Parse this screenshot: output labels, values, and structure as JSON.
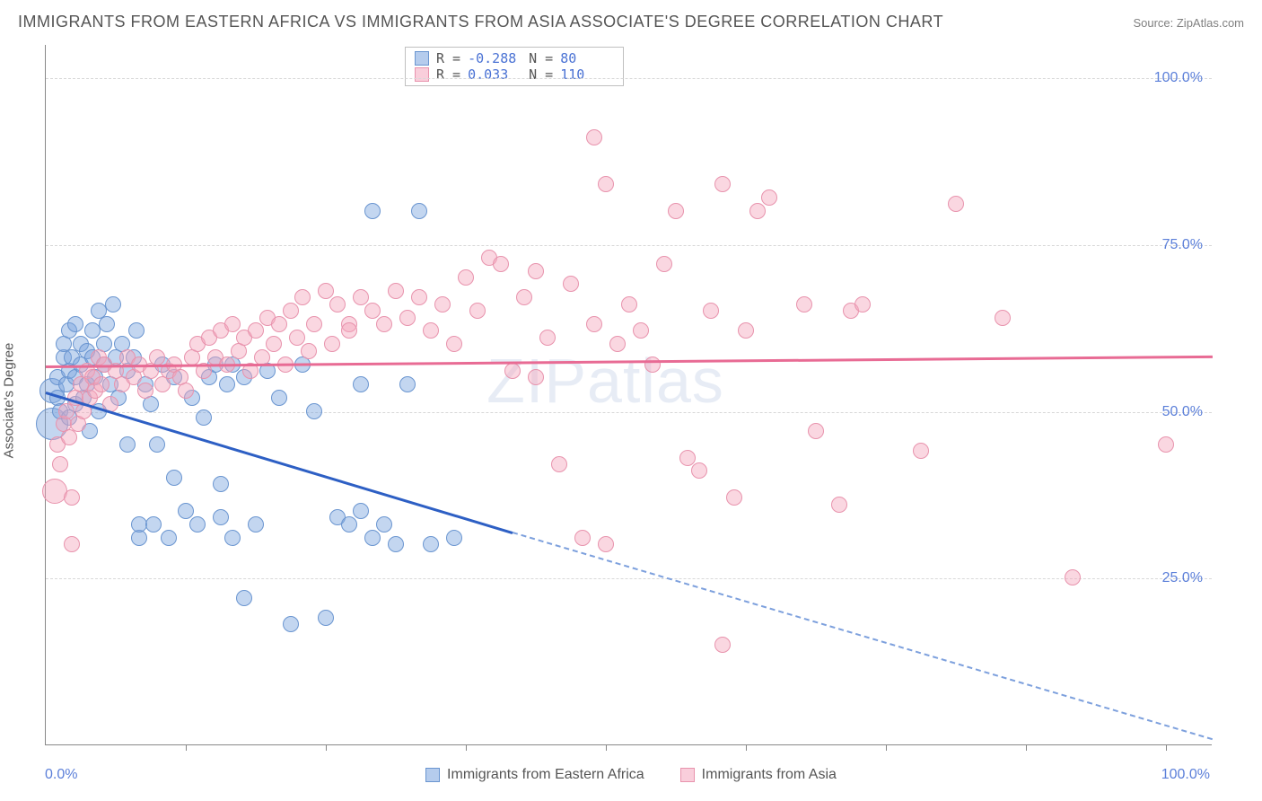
{
  "title": "IMMIGRANTS FROM EASTERN AFRICA VS IMMIGRANTS FROM ASIA ASSOCIATE'S DEGREE CORRELATION CHART",
  "source": "Source: ZipAtlas.com",
  "watermark": "ZIPatlas",
  "ylabel": "Associate's Degree",
  "chart": {
    "type": "scatter",
    "xlim": [
      0,
      100
    ],
    "ylim": [
      0,
      105
    ],
    "ytick_positions": [
      25,
      50,
      75,
      100
    ],
    "ytick_labels": [
      "25.0%",
      "50.0%",
      "75.0%",
      "100.0%"
    ],
    "xtick_positions": [
      12,
      24,
      36,
      48,
      60,
      72,
      84,
      96
    ],
    "xaxis_labels": {
      "left": "0.0%",
      "right": "100.0%"
    },
    "background_color": "#ffffff",
    "grid_color": "#d8d8d8",
    "axis_color": "#888888",
    "marker_radius": 9,
    "marker_radius_large": 16,
    "series": [
      {
        "name": "Immigrants from Eastern Africa",
        "color_fill": "rgba(121,163,222,0.45)",
        "color_stroke": "#6a95d0",
        "trend": {
          "color": "#2d5fc4",
          "x1": 0,
          "y1": 53,
          "x2": 40,
          "y2": 32,
          "dash_x2": 100,
          "dash_y2": 1
        },
        "R": "-0.288",
        "N": "80",
        "points": [
          [
            0.5,
            48,
            18
          ],
          [
            0.5,
            53,
            14
          ],
          [
            1,
            55
          ],
          [
            1,
            52
          ],
          [
            1.2,
            50
          ],
          [
            1.5,
            58
          ],
          [
            1.5,
            60
          ],
          [
            1.8,
            54
          ],
          [
            2,
            56
          ],
          [
            2,
            49
          ],
          [
            2,
            62
          ],
          [
            2.2,
            58
          ],
          [
            2.5,
            63
          ],
          [
            2.5,
            55
          ],
          [
            2.5,
            51
          ],
          [
            3,
            57
          ],
          [
            3,
            60
          ],
          [
            3.2,
            52
          ],
          [
            3.5,
            59
          ],
          [
            3.5,
            54
          ],
          [
            3.8,
            47
          ],
          [
            4,
            58
          ],
          [
            4,
            62
          ],
          [
            4.2,
            55
          ],
          [
            4.5,
            65
          ],
          [
            4.5,
            50
          ],
          [
            5,
            60
          ],
          [
            5,
            57
          ],
          [
            5.2,
            63
          ],
          [
            5.5,
            54
          ],
          [
            5.8,
            66
          ],
          [
            6,
            58
          ],
          [
            6.2,
            52
          ],
          [
            6.5,
            60
          ],
          [
            7,
            56
          ],
          [
            7,
            45
          ],
          [
            7.5,
            58
          ],
          [
            7.8,
            62
          ],
          [
            8,
            31
          ],
          [
            8,
            33
          ],
          [
            8.5,
            54
          ],
          [
            9,
            51
          ],
          [
            9.2,
            33
          ],
          [
            9.5,
            45
          ],
          [
            10,
            57
          ],
          [
            10.5,
            31
          ],
          [
            11,
            40
          ],
          [
            11,
            55
          ],
          [
            12,
            35
          ],
          [
            12.5,
            52
          ],
          [
            13,
            33
          ],
          [
            13.5,
            49
          ],
          [
            14,
            55
          ],
          [
            14.5,
            57
          ],
          [
            15,
            39
          ],
          [
            15,
            34
          ],
          [
            15.5,
            54
          ],
          [
            16,
            57
          ],
          [
            16,
            31
          ],
          [
            17,
            55
          ],
          [
            17,
            22
          ],
          [
            18,
            33
          ],
          [
            19,
            56
          ],
          [
            20,
            52
          ],
          [
            21,
            18
          ],
          [
            22,
            57
          ],
          [
            23,
            50
          ],
          [
            24,
            19
          ],
          [
            25,
            34
          ],
          [
            26,
            33
          ],
          [
            27,
            54
          ],
          [
            27,
            35
          ],
          [
            28,
            31
          ],
          [
            28,
            80
          ],
          [
            29,
            33
          ],
          [
            30,
            30
          ],
          [
            31,
            54
          ],
          [
            32,
            80
          ],
          [
            33,
            30
          ],
          [
            35,
            31
          ]
        ]
      },
      {
        "name": "Immigrants from Asia",
        "color_fill": "rgba(244,166,189,0.45)",
        "color_stroke": "#e893ad",
        "trend": {
          "color": "#e86b94",
          "x1": 0,
          "y1": 57,
          "x2": 100,
          "y2": 58.5
        },
        "R": "0.033",
        "N": "110",
        "points": [
          [
            0.8,
            38,
            14
          ],
          [
            1,
            45
          ],
          [
            1.2,
            42
          ],
          [
            1.5,
            48
          ],
          [
            1.8,
            50
          ],
          [
            2,
            46
          ],
          [
            2.2,
            37
          ],
          [
            2.2,
            30
          ],
          [
            2.5,
            52
          ],
          [
            2.8,
            48
          ],
          [
            3,
            54
          ],
          [
            3.2,
            50
          ],
          [
            3.5,
            56
          ],
          [
            3.8,
            52
          ],
          [
            4,
            55
          ],
          [
            4.2,
            53
          ],
          [
            4.5,
            58
          ],
          [
            4.8,
            54
          ],
          [
            5,
            57
          ],
          [
            5.5,
            51
          ],
          [
            6,
            56
          ],
          [
            6.5,
            54
          ],
          [
            7,
            58
          ],
          [
            7.5,
            55
          ],
          [
            8,
            57
          ],
          [
            8.5,
            53
          ],
          [
            9,
            56
          ],
          [
            9.5,
            58
          ],
          [
            10,
            54
          ],
          [
            10.5,
            56
          ],
          [
            11,
            57
          ],
          [
            11.5,
            55
          ],
          [
            12,
            53
          ],
          [
            12.5,
            58
          ],
          [
            13,
            60
          ],
          [
            13.5,
            56
          ],
          [
            14,
            61
          ],
          [
            14.5,
            58
          ],
          [
            15,
            62
          ],
          [
            15.5,
            57
          ],
          [
            16,
            63
          ],
          [
            16.5,
            59
          ],
          [
            17,
            61
          ],
          [
            17.5,
            56
          ],
          [
            18,
            62
          ],
          [
            18.5,
            58
          ],
          [
            19,
            64
          ],
          [
            19.5,
            60
          ],
          [
            20,
            63
          ],
          [
            20.5,
            57
          ],
          [
            21,
            65
          ],
          [
            21.5,
            61
          ],
          [
            22,
            67
          ],
          [
            22.5,
            59
          ],
          [
            23,
            63
          ],
          [
            24,
            68
          ],
          [
            24.5,
            60
          ],
          [
            25,
            66
          ],
          [
            26,
            63
          ],
          [
            26,
            62
          ],
          [
            27,
            67
          ],
          [
            28,
            65
          ],
          [
            29,
            63
          ],
          [
            30,
            68
          ],
          [
            31,
            64
          ],
          [
            32,
            67
          ],
          [
            33,
            62
          ],
          [
            34,
            66
          ],
          [
            35,
            60
          ],
          [
            36,
            70
          ],
          [
            37,
            65
          ],
          [
            38,
            73
          ],
          [
            39,
            72
          ],
          [
            40,
            56
          ],
          [
            41,
            67
          ],
          [
            42,
            71
          ],
          [
            42,
            55
          ],
          [
            43,
            61
          ],
          [
            44,
            42
          ],
          [
            45,
            69
          ],
          [
            46,
            31
          ],
          [
            47,
            63
          ],
          [
            47,
            91
          ],
          [
            48,
            30
          ],
          [
            48,
            84
          ],
          [
            49,
            60
          ],
          [
            50,
            66
          ],
          [
            51,
            62
          ],
          [
            52,
            57
          ],
          [
            53,
            72
          ],
          [
            54,
            80
          ],
          [
            55,
            43
          ],
          [
            56,
            41
          ],
          [
            57,
            65
          ],
          [
            58,
            84
          ],
          [
            58,
            15
          ],
          [
            59,
            37
          ],
          [
            60,
            62
          ],
          [
            61,
            80
          ],
          [
            62,
            82
          ],
          [
            65,
            66
          ],
          [
            66,
            47
          ],
          [
            68,
            36
          ],
          [
            69,
            65
          ],
          [
            70,
            66
          ],
          [
            75,
            44
          ],
          [
            78,
            81
          ],
          [
            82,
            64
          ],
          [
            88,
            25
          ],
          [
            96,
            45
          ]
        ]
      }
    ]
  },
  "stats_box": {
    "rows": [
      {
        "swatch": "blue",
        "R": "-0.288",
        "N": "80"
      },
      {
        "swatch": "pink",
        "R": "0.033",
        "N": "110"
      }
    ]
  },
  "bottom_legend": [
    {
      "swatch": "blue",
      "label": "Immigrants from Eastern Africa"
    },
    {
      "swatch": "pink",
      "label": "Immigrants from Asia"
    }
  ],
  "colors": {
    "blue_fill": "rgba(121,163,222,0.55)",
    "blue_stroke": "#6a95d0",
    "pink_fill": "rgba(244,166,189,0.55)",
    "pink_stroke": "#e893ad",
    "tick_label": "#5b7fd9",
    "text": "#555555"
  }
}
